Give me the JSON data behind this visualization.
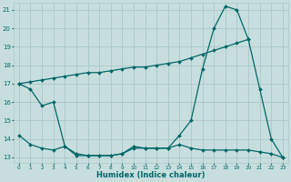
{
  "xlabel": "Humidex (Indice chaleur)",
  "background_color": "#c8dede",
  "grid_color": "#a8c8c8",
  "line_color": "#006868",
  "xlim": [
    -0.5,
    23.5
  ],
  "ylim": [
    12.7,
    21.4
  ],
  "xticks": [
    0,
    1,
    2,
    3,
    4,
    5,
    6,
    7,
    8,
    9,
    10,
    11,
    12,
    13,
    14,
    15,
    16,
    17,
    18,
    19,
    20,
    21,
    22,
    23
  ],
  "yticks": [
    13,
    14,
    15,
    16,
    17,
    18,
    19,
    20,
    21
  ],
  "line1_x": [
    0,
    1,
    2,
    3,
    4,
    5,
    6,
    7,
    8,
    9,
    10,
    11,
    12,
    13,
    14,
    15,
    16,
    17,
    18,
    19,
    20,
    21,
    22,
    23
  ],
  "line1_y": [
    17.0,
    16.7,
    15.8,
    16.0,
    13.6,
    13.1,
    13.1,
    13.1,
    13.1,
    13.2,
    13.5,
    13.5,
    13.5,
    13.5,
    14.2,
    15.0,
    17.8,
    20.0,
    21.2,
    21.0,
    19.4,
    16.7,
    14.0,
    13.0
  ],
  "line2_x": [
    0,
    1,
    2,
    3,
    4,
    5,
    6,
    7,
    8,
    9,
    10,
    11,
    12,
    13,
    14,
    15,
    16,
    17,
    18,
    19,
    20
  ],
  "line2_y": [
    17.0,
    17.1,
    17.2,
    17.3,
    17.4,
    17.5,
    17.6,
    17.6,
    17.7,
    17.8,
    17.9,
    17.9,
    18.0,
    18.1,
    18.2,
    18.4,
    18.6,
    18.8,
    19.0,
    19.2,
    19.4
  ],
  "line3_x": [
    0,
    1,
    2,
    3,
    4,
    5,
    6,
    7,
    8,
    9,
    10,
    11,
    12,
    13,
    14,
    15,
    16,
    17,
    18,
    19,
    20,
    21,
    22,
    23
  ],
  "line3_y": [
    14.2,
    13.7,
    13.5,
    13.4,
    13.6,
    13.2,
    13.1,
    13.1,
    13.1,
    13.2,
    13.6,
    13.5,
    13.5,
    13.5,
    13.7,
    13.5,
    13.4,
    13.4,
    13.4,
    13.4,
    13.4,
    13.3,
    13.2,
    13.0
  ]
}
